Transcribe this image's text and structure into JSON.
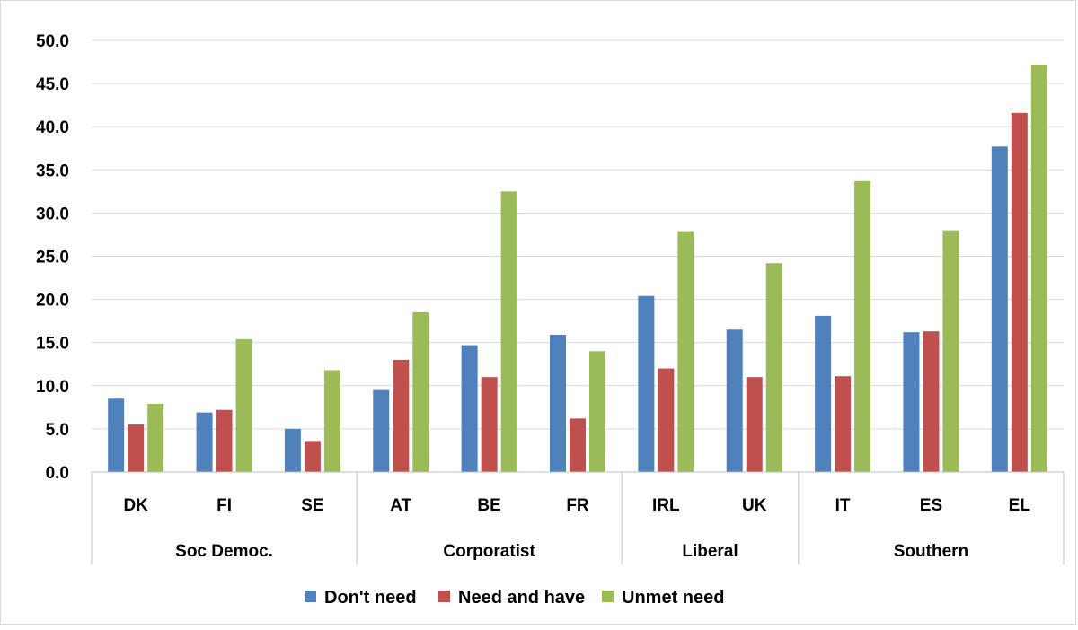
{
  "chart_data": {
    "type": "bar",
    "title": "",
    "xlabel": "",
    "ylabel": "",
    "ylim": [
      0,
      50
    ],
    "yticks": [
      "0.0",
      "5.0",
      "10.0",
      "15.0",
      "20.0",
      "25.0",
      "30.0",
      "35.0",
      "40.0",
      "45.0",
      "50.0"
    ],
    "grid": "horizontal",
    "legend_position": "bottom",
    "categories": [
      "DK",
      "FI",
      "SE",
      "AT",
      "BE",
      "FR",
      "IRL",
      "UK",
      "IT",
      "ES",
      "EL"
    ],
    "groups": [
      {
        "label": "Soc Democ.",
        "count": 3
      },
      {
        "label": "Corporatist",
        "count": 3
      },
      {
        "label": "Liberal",
        "count": 2
      },
      {
        "label": "Southern",
        "count": 3
      }
    ],
    "series": [
      {
        "name": "Don't need",
        "color": "#4F81BD",
        "values": [
          8.5,
          6.9,
          5.0,
          9.5,
          14.7,
          15.9,
          20.4,
          16.5,
          18.1,
          16.2,
          37.7
        ]
      },
      {
        "name": "Need and have",
        "color": "#C0504D",
        "values": [
          5.5,
          7.2,
          3.6,
          13.0,
          11.0,
          6.2,
          12.0,
          11.0,
          11.1,
          16.3,
          41.6
        ]
      },
      {
        "name": "Unmet need",
        "color": "#9BBB59",
        "values": [
          7.9,
          15.4,
          11.8,
          18.5,
          32.5,
          14.0,
          27.9,
          24.2,
          33.7,
          28.0,
          47.2
        ]
      }
    ]
  }
}
